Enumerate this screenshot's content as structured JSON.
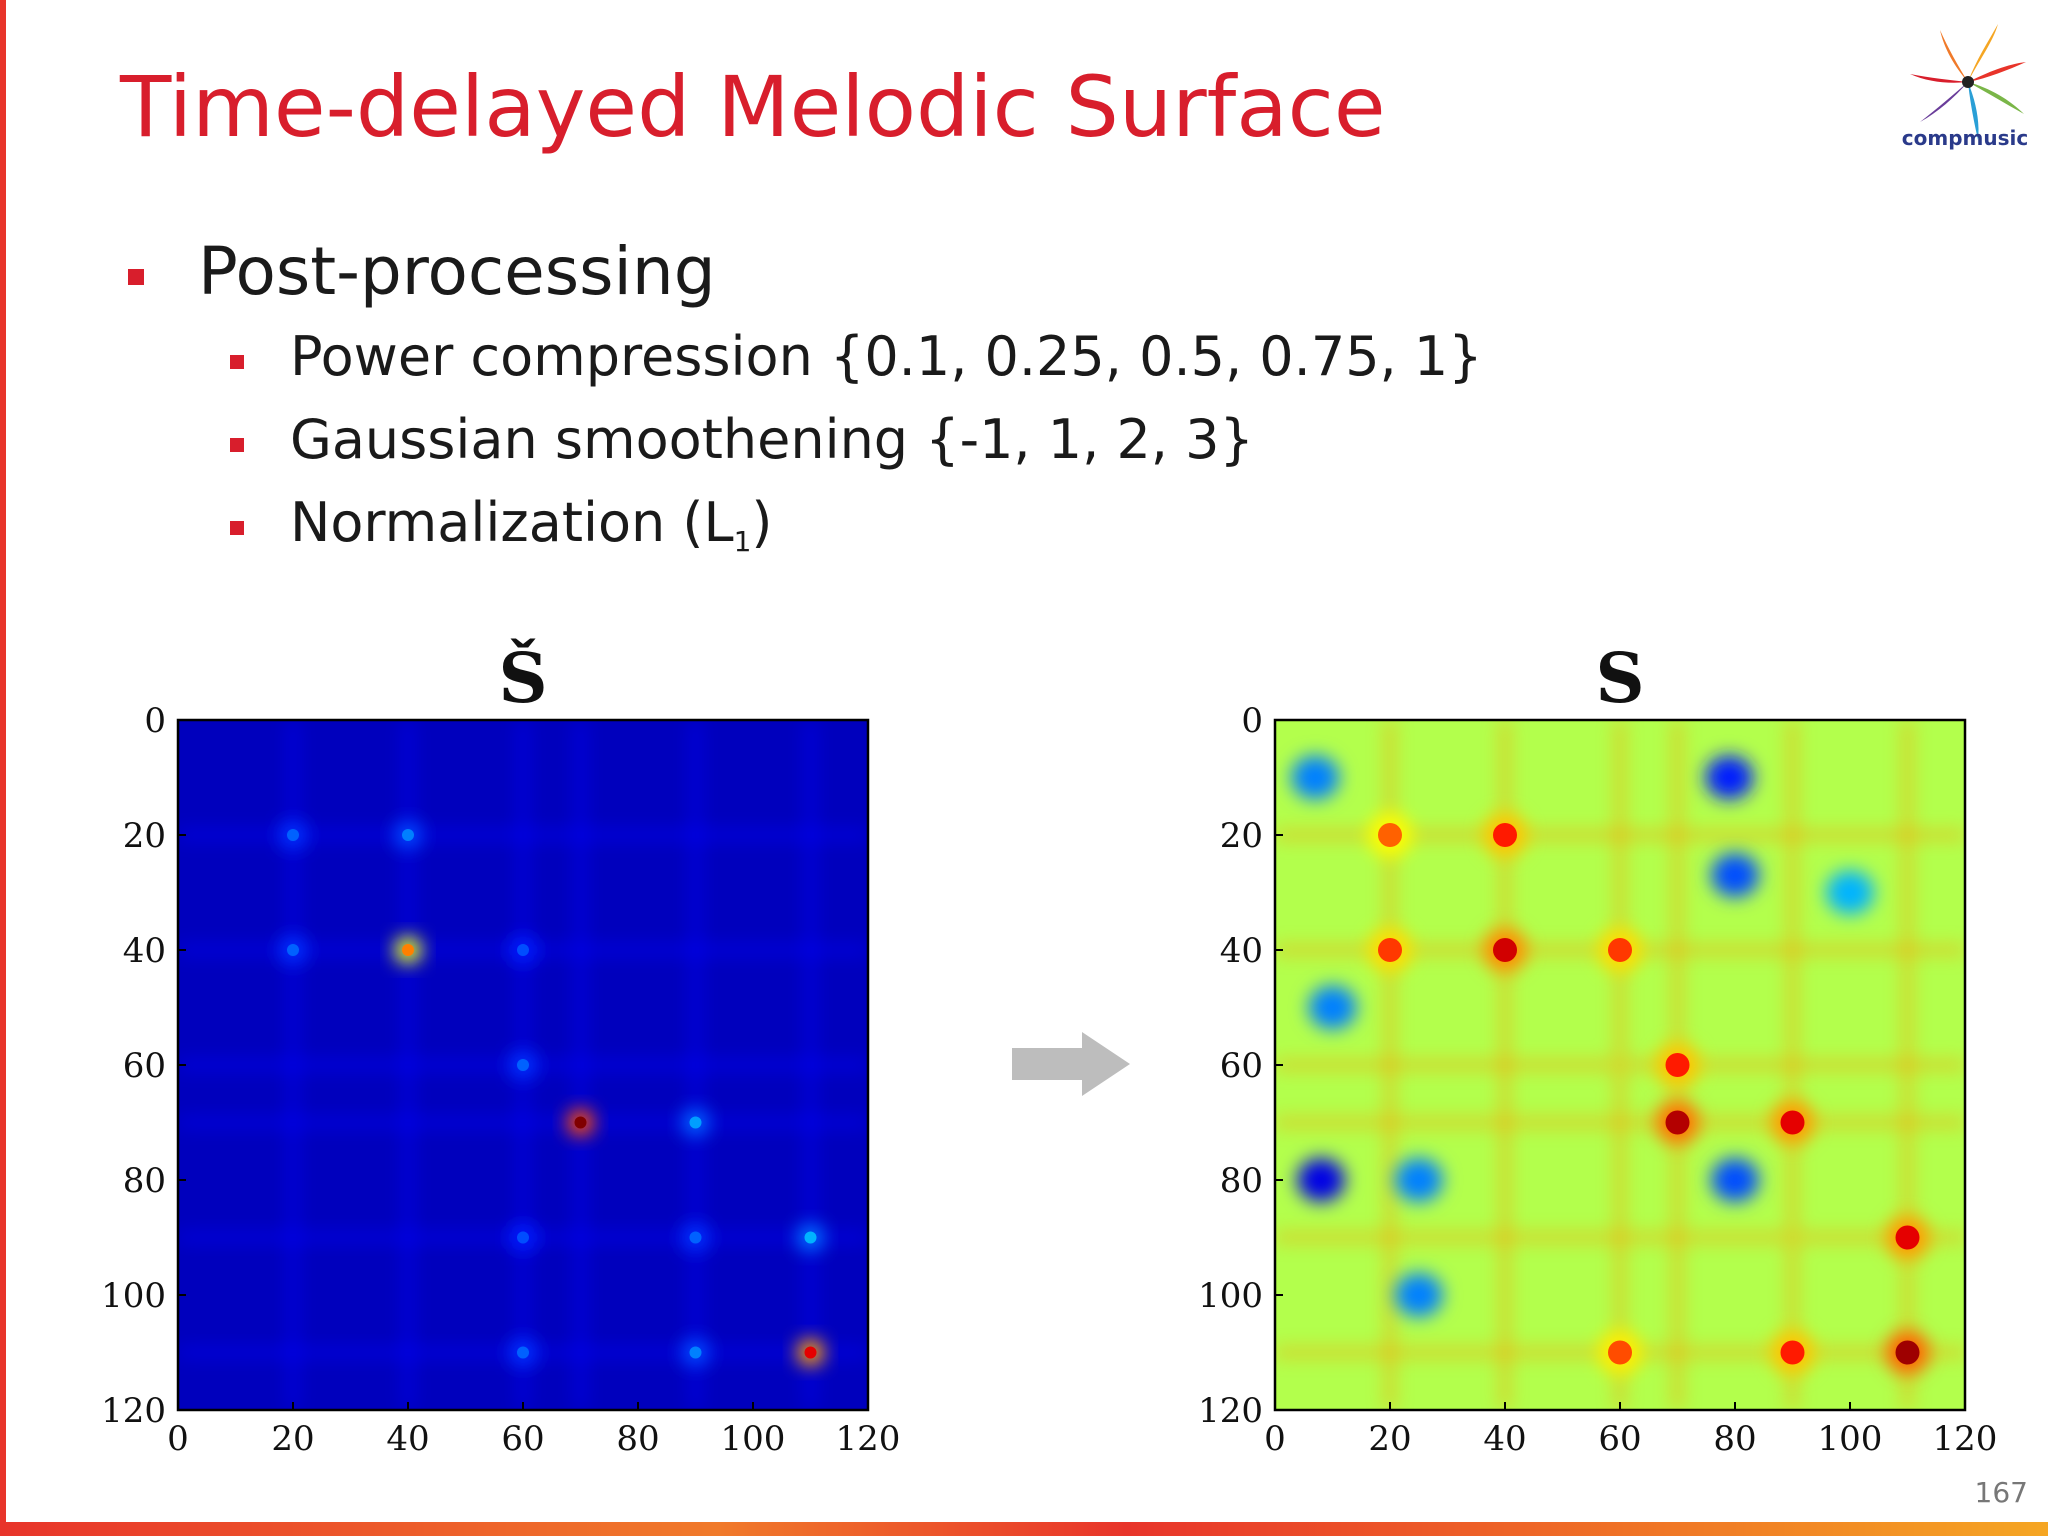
{
  "slide": {
    "title": "Time-delayed Melodic Surface",
    "logo_text": "compmusic",
    "page_number": "167"
  },
  "bullets": {
    "level1": "Post-processing",
    "level2": [
      "Power compression {0.1, 0.25, 0.5, 0.75, 1}",
      "Gaussian smoothening {-1, 1, 2, 3}"
    ],
    "normalization_text": "Normalization (L",
    "normalization_sub": "1",
    "normalization_close": ")"
  },
  "colors": {
    "accent": "#d81e2c",
    "arrow": "#bdbdbd"
  },
  "chart_data": [
    {
      "type": "heatmap",
      "title": "Š",
      "colormap": "jet",
      "xlim": [
        0,
        120
      ],
      "ylim": [
        120,
        0
      ],
      "x_ticks": [
        "0",
        "20",
        "40",
        "60",
        "80",
        "100",
        "120"
      ],
      "y_ticks": [
        "0",
        "20",
        "40",
        "60",
        "80",
        "100",
        "120"
      ],
      "background_value": 0.06,
      "grid_lines": [
        20,
        40,
        60,
        70,
        90,
        110
      ],
      "peaks": [
        {
          "x": 40,
          "y": 40,
          "value": 0.75
        },
        {
          "x": 70,
          "y": 70,
          "value": 1.0
        },
        {
          "x": 110,
          "y": 110,
          "value": 0.9
        },
        {
          "x": 20,
          "y": 20,
          "value": 0.22
        },
        {
          "x": 40,
          "y": 20,
          "value": 0.25
        },
        {
          "x": 20,
          "y": 40,
          "value": 0.22
        },
        {
          "x": 60,
          "y": 40,
          "value": 0.2
        },
        {
          "x": 60,
          "y": 60,
          "value": 0.22
        },
        {
          "x": 90,
          "y": 70,
          "value": 0.28
        },
        {
          "x": 60,
          "y": 90,
          "value": 0.2
        },
        {
          "x": 90,
          "y": 90,
          "value": 0.22
        },
        {
          "x": 110,
          "y": 90,
          "value": 0.3
        },
        {
          "x": 60,
          "y": 110,
          "value": 0.22
        },
        {
          "x": 90,
          "y": 110,
          "value": 0.25
        }
      ]
    },
    {
      "type": "heatmap",
      "title": "S",
      "colormap": "jet",
      "xlim": [
        0,
        120
      ],
      "ylim": [
        120,
        0
      ],
      "x_ticks": [
        "0",
        "20",
        "40",
        "60",
        "80",
        "100",
        "120"
      ],
      "y_ticks": [
        "0",
        "20",
        "40",
        "60",
        "80",
        "100",
        "120"
      ],
      "background_value": 0.55,
      "grid_lines": [
        20,
        40,
        60,
        70,
        90,
        110
      ],
      "peaks": [
        {
          "x": 40,
          "y": 20,
          "value": 0.85
        },
        {
          "x": 20,
          "y": 40,
          "value": 0.82
        },
        {
          "x": 40,
          "y": 40,
          "value": 0.92
        },
        {
          "x": 60,
          "y": 40,
          "value": 0.82
        },
        {
          "x": 70,
          "y": 60,
          "value": 0.85
        },
        {
          "x": 70,
          "y": 70,
          "value": 0.95
        },
        {
          "x": 90,
          "y": 70,
          "value": 0.9
        },
        {
          "x": 110,
          "y": 90,
          "value": 0.9
        },
        {
          "x": 110,
          "y": 110,
          "value": 0.97
        },
        {
          "x": 90,
          "y": 110,
          "value": 0.85
        },
        {
          "x": 60,
          "y": 110,
          "value": 0.8
        },
        {
          "x": 20,
          "y": 20,
          "value": 0.78
        }
      ],
      "lows": [
        {
          "x": 7,
          "y": 10,
          "value": 0.25
        },
        {
          "x": 79,
          "y": 10,
          "value": 0.15
        },
        {
          "x": 80,
          "y": 27,
          "value": 0.2
        },
        {
          "x": 10,
          "y": 50,
          "value": 0.25
        },
        {
          "x": 8,
          "y": 80,
          "value": 0.1
        },
        {
          "x": 80,
          "y": 80,
          "value": 0.2
        },
        {
          "x": 25,
          "y": 80,
          "value": 0.25
        },
        {
          "x": 25,
          "y": 100,
          "value": 0.25
        },
        {
          "x": 100,
          "y": 30,
          "value": 0.3
        }
      ]
    }
  ]
}
